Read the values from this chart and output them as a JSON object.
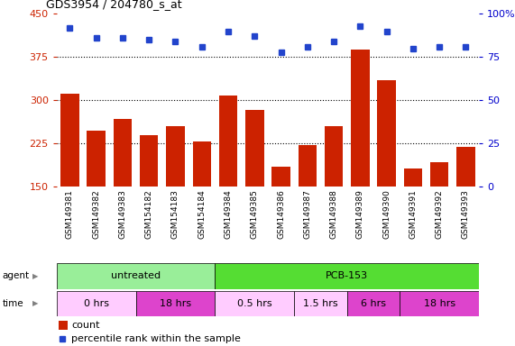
{
  "title": "GDS3954 / 204780_s_at",
  "samples": [
    "GSM149381",
    "GSM149382",
    "GSM149383",
    "GSM154182",
    "GSM154183",
    "GSM154184",
    "GSM149384",
    "GSM149385",
    "GSM149386",
    "GSM149387",
    "GSM149388",
    "GSM149389",
    "GSM149390",
    "GSM149391",
    "GSM149392",
    "GSM149393"
  ],
  "counts": [
    312,
    248,
    268,
    240,
    255,
    228,
    308,
    284,
    185,
    222,
    256,
    388,
    335,
    182,
    192,
    220
  ],
  "percentile_ranks": [
    92,
    86,
    86,
    85,
    84,
    81,
    90,
    87,
    78,
    81,
    84,
    93,
    90,
    80,
    81,
    81
  ],
  "ylim_left": [
    150,
    450
  ],
  "ylim_right": [
    0,
    100
  ],
  "yticks_left": [
    150,
    225,
    300,
    375,
    450
  ],
  "yticks_right": [
    0,
    25,
    50,
    75,
    100
  ],
  "bar_color": "#cc2200",
  "dot_color": "#2244cc",
  "bg_color": "#e8e8e8",
  "plot_bg": "#ffffff",
  "agent_groups": [
    {
      "label": "untreated",
      "start": 0,
      "end": 6,
      "color": "#99ee99"
    },
    {
      "label": "PCB-153",
      "start": 6,
      "end": 16,
      "color": "#55dd33"
    }
  ],
  "time_groups": [
    {
      "label": "0 hrs",
      "start": 0,
      "end": 3,
      "color": "#ffccff"
    },
    {
      "label": "18 hrs",
      "start": 3,
      "end": 6,
      "color": "#dd44cc"
    },
    {
      "label": "0.5 hrs",
      "start": 6,
      "end": 9,
      "color": "#ffccff"
    },
    {
      "label": "1.5 hrs",
      "start": 9,
      "end": 11,
      "color": "#ffccff"
    },
    {
      "label": "6 hrs",
      "start": 11,
      "end": 13,
      "color": "#dd44cc"
    },
    {
      "label": "18 hrs",
      "start": 13,
      "end": 16,
      "color": "#dd44cc"
    }
  ],
  "legend_count_color": "#cc2200",
  "legend_dot_color": "#2244cc",
  "ylabel_left_color": "#cc2200",
  "ylabel_right_color": "#0000cc"
}
